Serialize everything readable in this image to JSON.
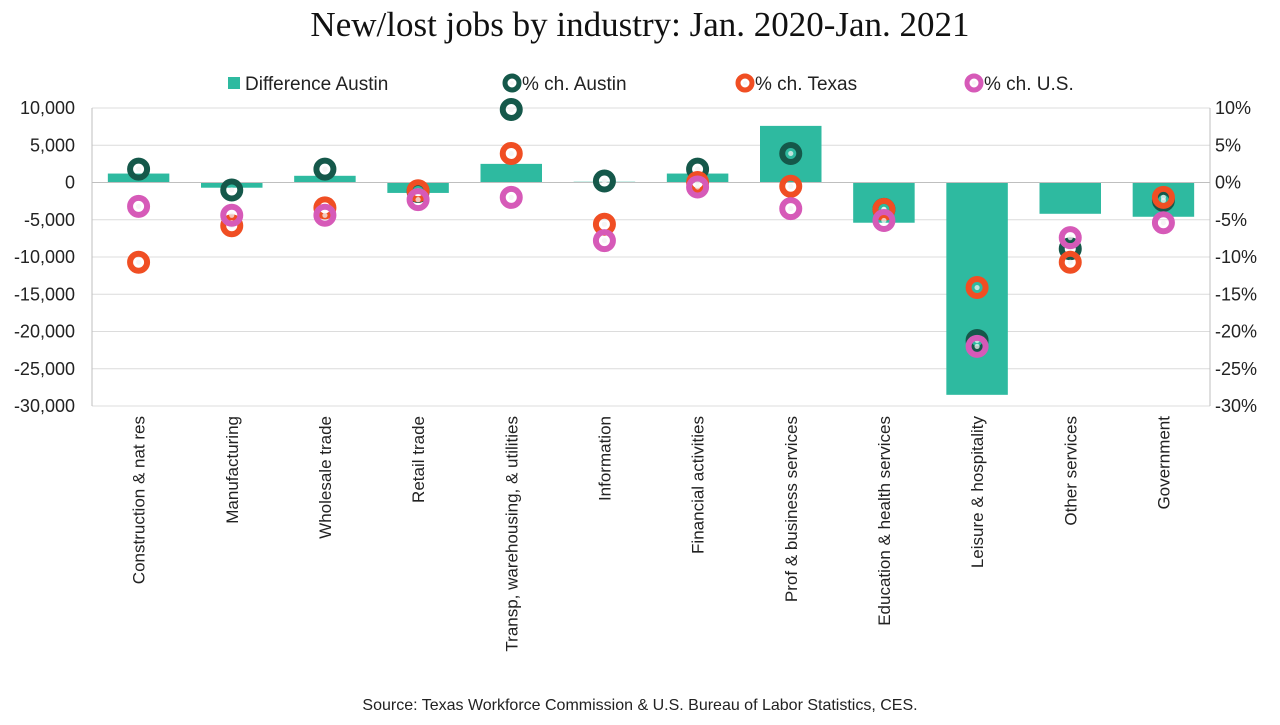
{
  "chart_data": {
    "type": "bar",
    "title": "New/lost jobs by industry: Jan. 2020-Jan. 2021",
    "source": "Source: Texas Workforce Commission & U.S. Bureau of Labor Statistics, CES.",
    "categories": [
      "Construction & nat res",
      "Manufacturing",
      "Wholesale trade",
      "Retail trade",
      "Transp, warehousing, & utilities",
      "Information",
      "Financial activities",
      "Prof & business services",
      "Education & health services",
      "Leisure & hospitality",
      "Other services",
      "Government"
    ],
    "bar_series": {
      "name": "Difference Austin",
      "color": "#2ebaa0",
      "axis": "left",
      "values": [
        1200,
        -700,
        900,
        -1400,
        2500,
        100,
        1200,
        7600,
        -5400,
        -28500,
        -4200,
        -4600
      ]
    },
    "point_series": [
      {
        "name": "% ch. Austin",
        "color": "#15584a",
        "axis": "right",
        "values": [
          1.8,
          -1.0,
          1.8,
          -1.2,
          9.8,
          0.2,
          1.8,
          3.9,
          -3.6,
          -21.2,
          -8.9,
          -2.4
        ]
      },
      {
        "name": "% ch. Texas",
        "color": "#f04e23",
        "axis": "right",
        "values": [
          -10.7,
          -5.8,
          -3.4,
          -1.1,
          3.9,
          -5.6,
          0.0,
          -0.5,
          -3.6,
          -14.1,
          -10.7,
          -2.0
        ]
      },
      {
        "name": "% ch. U.S.",
        "color": "#d65ab8",
        "axis": "right",
        "values": [
          -3.2,
          -4.4,
          -4.4,
          -2.3,
          -2.0,
          -7.8,
          -0.6,
          -3.5,
          -5.1,
          -22.0,
          -7.4,
          -5.4
        ]
      }
    ],
    "left_axis": {
      "range": [
        -30000,
        10000
      ],
      "ticks": [
        10000,
        5000,
        0,
        -5000,
        -10000,
        -15000,
        -20000,
        -25000,
        -30000
      ],
      "tick_labels": [
        "10,000",
        "5,000",
        "0",
        "-5,000",
        "-10,000",
        "-15,000",
        "-20,000",
        "-25,000",
        "-30,000"
      ]
    },
    "right_axis": {
      "range": [
        -30,
        10
      ],
      "ticks": [
        10,
        5,
        0,
        -5,
        -10,
        -15,
        -20,
        -25,
        -30
      ],
      "tick_labels": [
        "10%",
        "5%",
        "0%",
        "-5%",
        "-10%",
        "-15%",
        "-20%",
        "-25%",
        "-30%"
      ]
    },
    "grid": true,
    "legend_position": "top"
  }
}
